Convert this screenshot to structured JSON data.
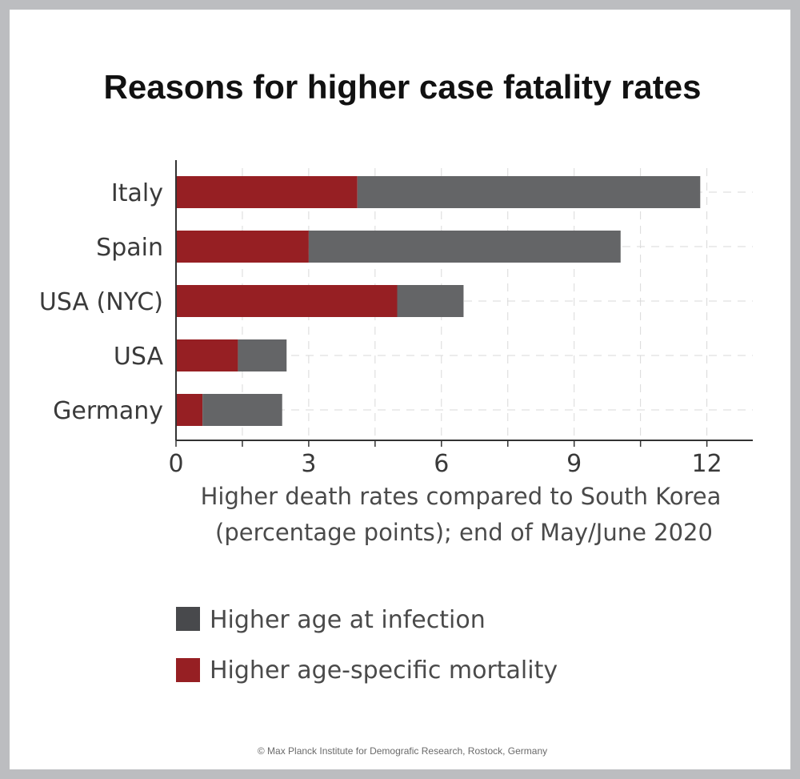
{
  "colors": {
    "age_at_infection": "#646567",
    "legend_age_at_infection": "#48494c",
    "age_specific_mortality": "#961f23",
    "axis": "#333333",
    "grid": "#d9d9d9",
    "background": "#ffffff",
    "border": "#bcbdc0"
  },
  "chart_data": {
    "type": "bar",
    "orientation": "horizontal",
    "stacked": true,
    "title": "Reasons for higher case fatality rates",
    "xlabel": "Higher death rates compared to South Korea",
    "xlabel_line2": "(percentage points); end of May/June 2020",
    "ylabel": "",
    "categories": [
      "Italy",
      "Spain",
      "USA (NYC)",
      "USA",
      "Germany"
    ],
    "series": [
      {
        "name": "Higher age-specific mortality",
        "color": "#961f23",
        "values": [
          4.1,
          3.0,
          5.0,
          1.4,
          0.6
        ]
      },
      {
        "name": "Higher age at infection",
        "color": "#646567",
        "values": [
          7.75,
          7.05,
          1.5,
          1.1,
          1.8
        ]
      }
    ],
    "xlim": [
      0,
      13
    ],
    "xticks": [
      0,
      3,
      6,
      9,
      12
    ],
    "xtick_labels": [
      "0",
      "3",
      "6",
      "9",
      "12"
    ],
    "grid": "dashed vertical and horizontal",
    "legend": {
      "placement": "bottom-left",
      "entries": [
        "Higher age at infection",
        "Higher age-specific mortality"
      ]
    }
  },
  "credit": "©   Max Planck Institute for Demografic Research, Rostock, Germany"
}
